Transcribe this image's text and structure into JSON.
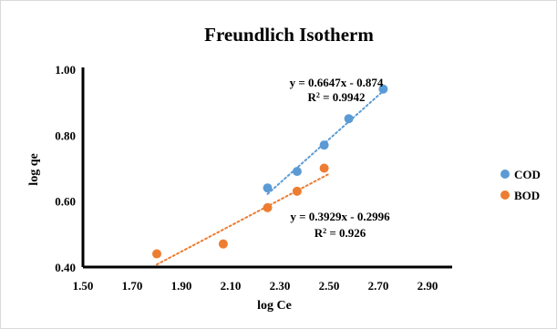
{
  "chart_data": {
    "type": "scatter",
    "title": "Freundlich Isotherm",
    "xlabel": "log Ce",
    "ylabel": "log qe",
    "xlim": [
      1.5,
      3.0
    ],
    "ylim": [
      0.4,
      1.0
    ],
    "x_ticks": [
      "1.50",
      "1.70",
      "1.90",
      "2.10",
      "2.30",
      "2.50",
      "2.70",
      "2.90"
    ],
    "y_ticks": [
      "0.40",
      "0.60",
      "0.80",
      "1.00"
    ],
    "grid": false,
    "legend_position": "right",
    "series": [
      {
        "name": "COD",
        "color": "#5b9bd5",
        "x": [
          2.25,
          2.37,
          2.48,
          2.58,
          2.72
        ],
        "y": [
          0.64,
          0.69,
          0.77,
          0.85,
          0.94
        ],
        "trendline": {
          "slope": 0.6647,
          "intercept": -0.874,
          "x_range": [
            2.25,
            2.72
          ],
          "equation": "y = 0.6647x - 0.874",
          "r2_prefix": "R",
          "r2_sup": "2",
          "r2_suffix": " = 0.9942"
        }
      },
      {
        "name": "BOD",
        "color": "#ed7d31",
        "x": [
          1.8,
          2.07,
          2.25,
          2.37,
          2.48
        ],
        "y": [
          0.44,
          0.47,
          0.58,
          0.63,
          0.7
        ],
        "trendline": {
          "slope": 0.3929,
          "intercept": -0.2996,
          "x_range": [
            1.8,
            2.5
          ],
          "equation": "y = 0.3929x - 0.2996",
          "r2_prefix": "R",
          "r2_sup": "2",
          "r2_suffix": " = 0.926"
        }
      }
    ]
  }
}
